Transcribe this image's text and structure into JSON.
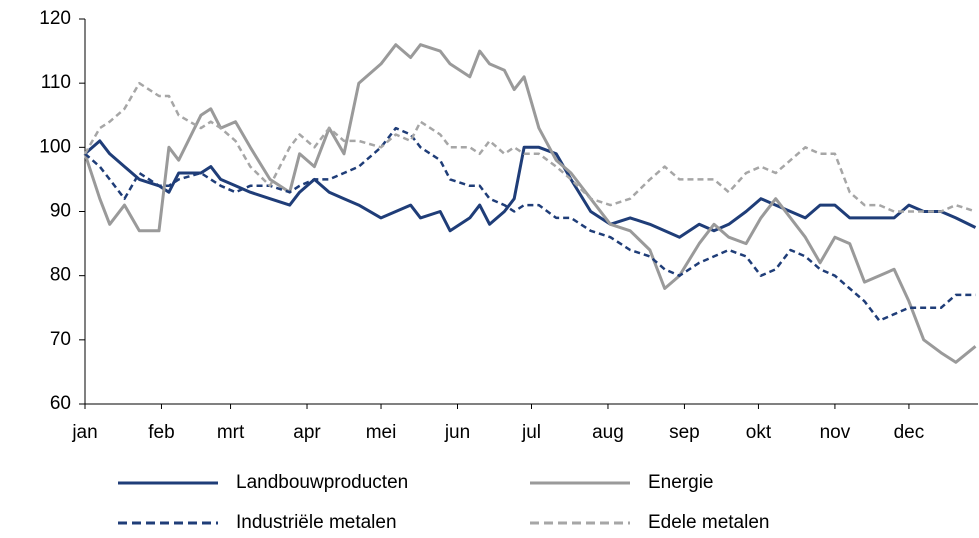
{
  "chart_data": {
    "type": "line",
    "x": [
      0,
      6,
      10,
      16,
      22,
      30,
      34,
      38,
      47,
      51,
      55,
      61,
      67,
      75,
      83,
      87,
      93,
      99,
      105,
      111,
      120,
      126,
      132,
      136,
      144,
      148,
      156,
      160,
      164,
      170,
      174,
      178,
      184,
      191,
      197,
      205,
      213,
      221,
      229,
      235,
      241,
      249,
      255,
      261,
      268,
      274,
      280,
      286,
      292,
      298,
      304,
      310,
      316,
      322,
      328,
      334,
      340,
      347,
      353,
      361
    ],
    "xlim": [
      0,
      362
    ],
    "xticks": [
      {
        "value": 0,
        "label": "jan"
      },
      {
        "value": 31,
        "label": "feb"
      },
      {
        "value": 59,
        "label": "mrt"
      },
      {
        "value": 90,
        "label": "apr"
      },
      {
        "value": 120,
        "label": "mei"
      },
      {
        "value": 151,
        "label": "jun"
      },
      {
        "value": 181,
        "label": "jul"
      },
      {
        "value": 212,
        "label": "aug"
      },
      {
        "value": 243,
        "label": "sep"
      },
      {
        "value": 273,
        "label": "okt"
      },
      {
        "value": 304,
        "label": "nov"
      },
      {
        "value": 334,
        "label": "dec"
      }
    ],
    "ylim": [
      60,
      120
    ],
    "yticks": [
      60,
      70,
      80,
      90,
      100,
      110,
      120
    ],
    "legend": "bottom",
    "series": [
      {
        "name": "Landbouwproducten",
        "color": "#1f3d78",
        "style": "solid",
        "values": [
          99,
          101,
          99,
          97,
          95,
          94,
          93,
          96,
          96,
          97,
          95,
          94,
          93,
          92,
          91,
          93,
          95,
          93,
          92,
          91,
          89,
          90,
          91,
          89,
          90,
          87,
          89,
          91,
          88,
          90,
          92,
          100,
          100,
          99,
          95,
          90,
          88,
          89,
          88,
          87,
          86,
          88,
          87,
          88,
          90,
          92,
          91,
          90,
          89,
          91,
          91,
          89,
          89,
          89,
          89,
          91,
          90,
          90,
          89,
          87.5
        ]
      },
      {
        "name": "Energie",
        "color": "#9a9a9a",
        "style": "solid",
        "values": [
          99,
          92,
          88,
          91,
          87,
          87,
          100,
          98,
          105,
          106,
          103,
          104,
          100,
          95,
          93,
          99,
          97,
          103,
          99,
          110,
          113,
          116,
          114,
          116,
          115,
          113,
          111,
          115,
          113,
          112,
          109,
          111,
          103,
          98,
          96,
          92,
          88,
          87,
          84,
          78,
          80,
          85,
          88,
          86,
          85,
          89,
          92,
          89,
          86,
          82,
          86,
          85,
          79,
          80,
          81,
          76,
          70,
          68,
          66.5,
          69
        ]
      },
      {
        "name": "Industriële metalen",
        "color": "#1f3d78",
        "style": "dashed",
        "values": [
          99,
          97,
          95,
          92,
          96,
          94,
          94,
          95,
          96,
          95,
          94,
          93,
          94,
          94,
          93,
          94,
          95,
          95,
          96,
          97,
          100,
          103,
          102,
          100,
          98,
          95,
          94,
          94,
          92,
          91,
          90,
          91,
          91,
          89,
          89,
          87,
          86,
          84,
          83,
          81,
          80,
          82,
          83,
          84,
          83,
          80,
          81,
          84,
          83,
          81,
          80,
          78,
          76,
          73,
          74,
          75,
          75,
          75,
          77,
          77
        ]
      },
      {
        "name": "Edele metalen",
        "color": "#a6a6a6",
        "style": "dashed",
        "values": [
          99,
          103,
          104,
          106,
          110,
          108,
          108,
          105,
          103,
          104,
          103,
          101,
          97,
          94,
          100,
          102,
          100,
          103,
          101,
          101,
          100,
          102,
          101,
          104,
          102,
          100,
          100,
          99,
          101,
          99,
          100,
          99,
          99,
          97,
          95,
          92,
          91,
          92,
          95,
          97,
          95,
          95,
          95,
          93,
          96,
          97,
          96,
          98,
          100,
          99,
          99,
          93,
          91,
          91,
          90,
          90,
          90,
          90,
          91,
          90
        ]
      }
    ]
  }
}
